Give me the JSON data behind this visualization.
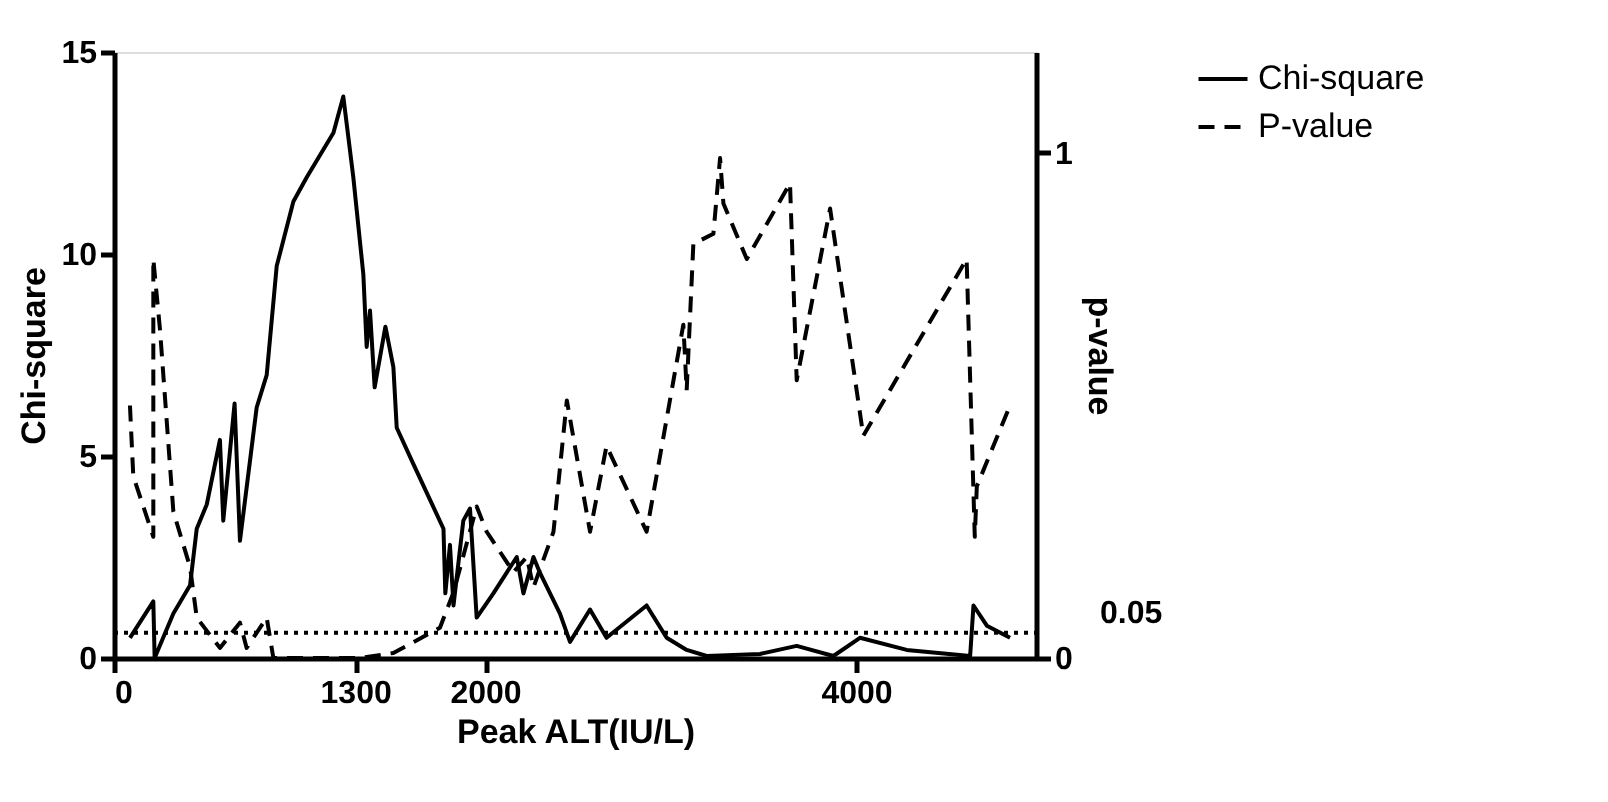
{
  "chart_data": {
    "type": "line",
    "xlabel": "Peak  ALT(IU/L)",
    "ylabel": "Chi-square",
    "y2label": "p-value",
    "xlim": [
      0,
      4970
    ],
    "xticks": [
      0,
      1300,
      2000,
      4000
    ],
    "ylim": [
      0,
      15
    ],
    "yticks": [
      0,
      5,
      10,
      15
    ],
    "y2lim": [
      0,
      1.2
    ],
    "y2ticks": [
      0,
      1
    ],
    "grid": false,
    "legend": "top right",
    "marker": "none",
    "ref_lines": [
      {
        "axis": "y2",
        "value": 0.05,
        "label": "0.05",
        "line_style": "dotted",
        "color": "#000000"
      }
    ],
    "series": [
      {
        "name": "Chi-square",
        "color": "#000000",
        "line_style": "solid",
        "x": [
          86,
          212,
          219,
          320,
          410,
          446,
          500,
          571,
          589,
          650,
          679,
          769,
          823,
          877,
          967,
          1039,
          1183,
          1236,
          1290,
          1344,
          1362,
          1380,
          1405,
          1463,
          1506,
          1524,
          1614,
          1776,
          1786,
          1811,
          1830,
          1883,
          1919,
          1955,
          2045,
          2171,
          2207,
          2261,
          2297,
          2404,
          2458,
          2566,
          2655,
          2871,
          2979,
          3087,
          3195,
          3482,
          3680,
          3878,
          4021,
          4273,
          4615,
          4633,
          4705,
          4830
        ],
        "values": [
          0.5,
          1.4,
          0,
          1.1,
          1.8,
          3.2,
          3.8,
          5.4,
          3.4,
          6.3,
          2.9,
          6.2,
          7.0,
          9.7,
          11.3,
          11.9,
          13.0,
          13.9,
          11.9,
          9.5,
          7.7,
          8.6,
          6.7,
          8.2,
          7.2,
          5.7,
          4.8,
          3.2,
          1.6,
          2.8,
          1.3,
          3.4,
          3.7,
          1.0,
          1.6,
          2.5,
          1.6,
          2.5,
          2.1,
          1.1,
          0.4,
          1.2,
          0.5,
          1.3,
          0.5,
          0.2,
          0.05,
          0.1,
          0.3,
          0.05,
          0.5,
          0.2,
          0.05,
          1.3,
          0.8,
          0.5
        ]
      },
      {
        "name": "P-value",
        "color": "#000000",
        "line_style": "dashed",
        "axis": "y2",
        "x": [
          86,
          104,
          212,
          212,
          248,
          320,
          410,
          446,
          571,
          679,
          715,
          823,
          859,
          1326,
          1506,
          1757,
          1830,
          1955,
          2009,
          2153,
          2225,
          2261,
          2369,
          2441,
          2566,
          2655,
          2871,
          3069,
          3087,
          3123,
          3231,
          3267,
          3285,
          3411,
          3644,
          3680,
          3860,
          4039,
          4596,
          4640,
          4651,
          4830
        ],
        "values": [
          0.5,
          0.36,
          0.24,
          0.79,
          0.65,
          0.29,
          0.18,
          0.08,
          0.02,
          0.07,
          0.02,
          0.08,
          0,
          0,
          0.01,
          0.06,
          0.13,
          0.3,
          0.25,
          0.17,
          0.2,
          0.14,
          0.25,
          0.51,
          0.25,
          0.42,
          0.25,
          0.66,
          0.53,
          0.82,
          0.84,
          0.99,
          0.9,
          0.79,
          0.94,
          0.55,
          0.89,
          0.44,
          0.79,
          0.24,
          0.34,
          0.5
        ]
      }
    ]
  }
}
